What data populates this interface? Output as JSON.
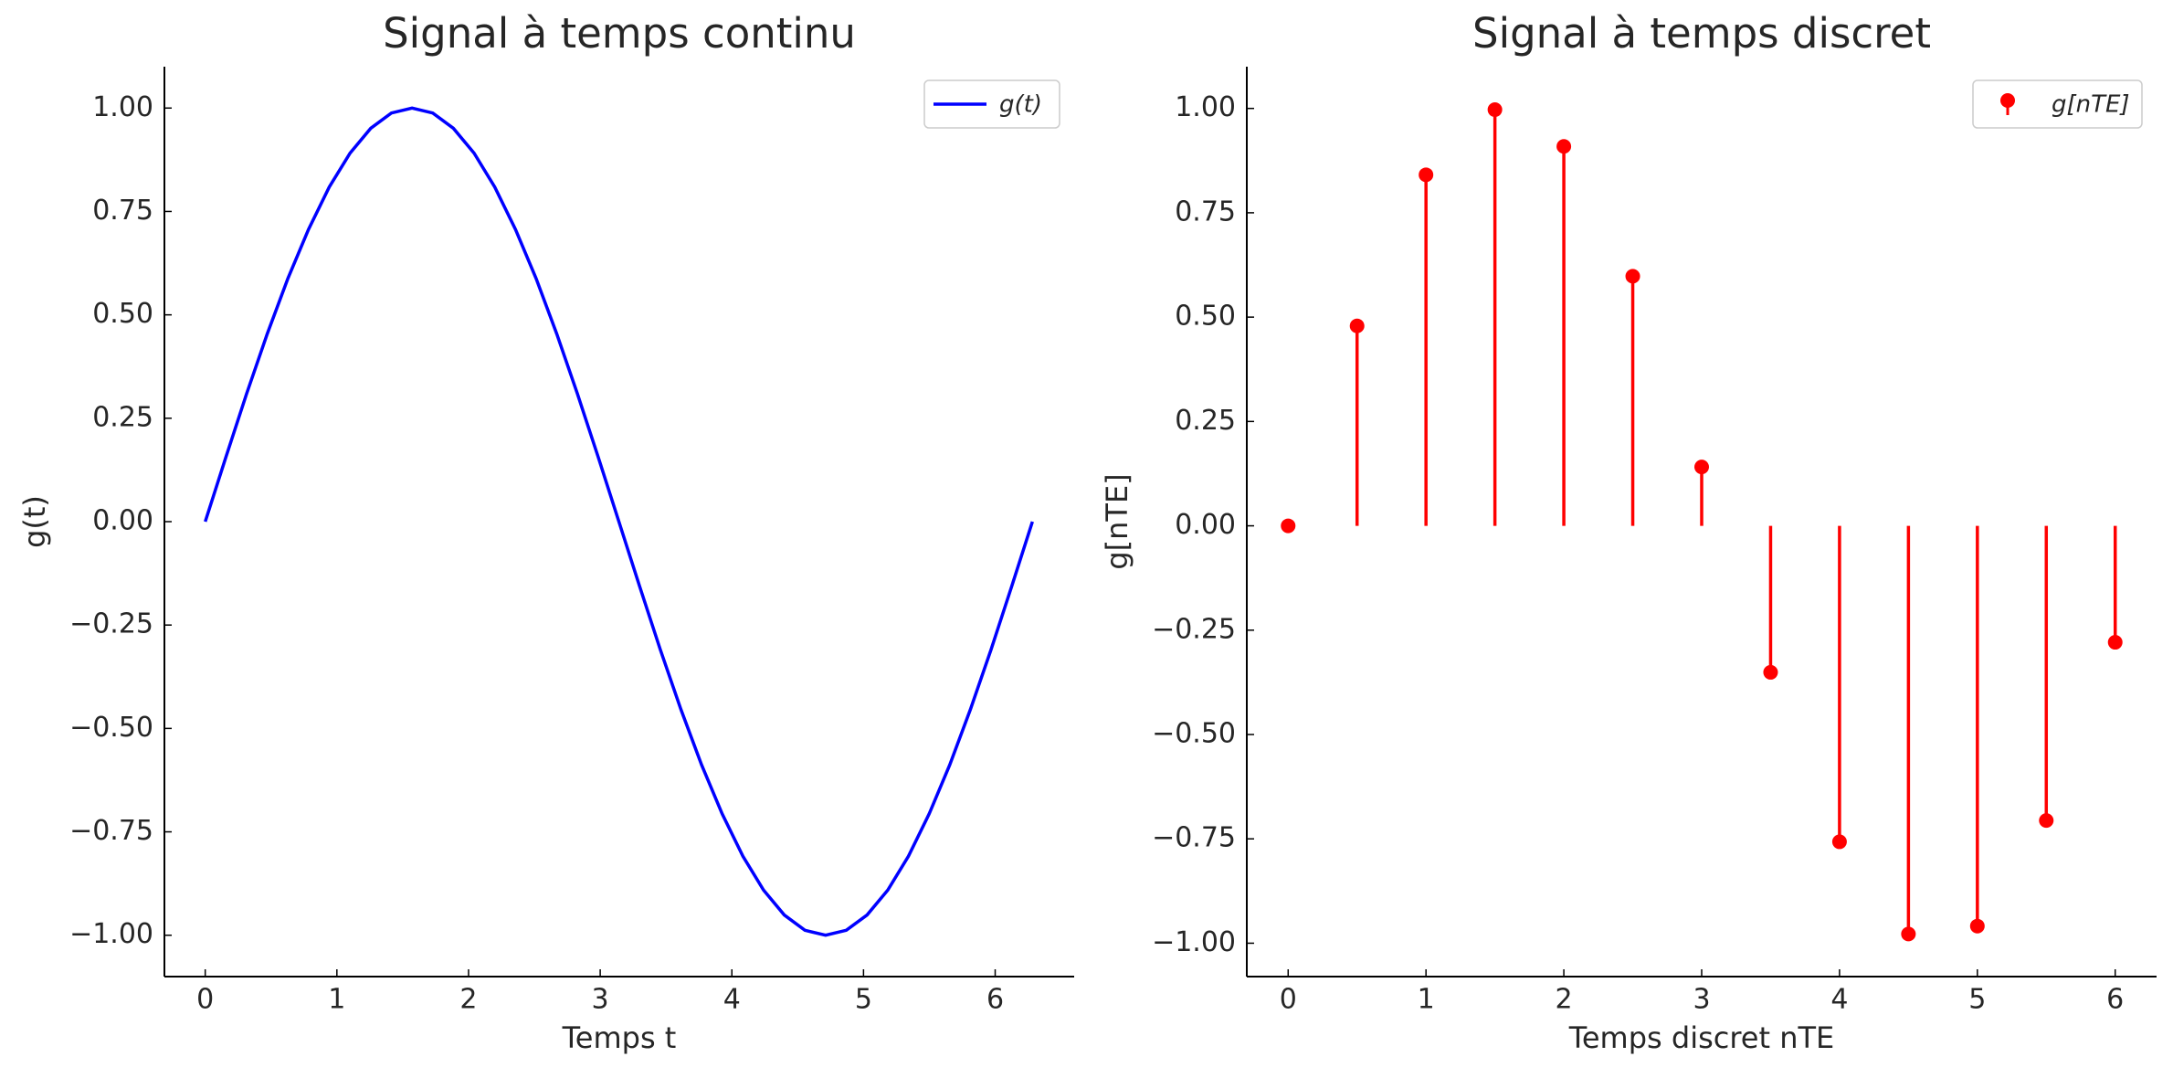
{
  "chart_data": [
    {
      "type": "line",
      "title": "Signal à temps continu",
      "x_label": "Temps t",
      "y_label": "g(t)",
      "x": [
        0,
        0.157,
        0.314,
        0.471,
        0.628,
        0.785,
        0.942,
        1.1,
        1.257,
        1.414,
        1.571,
        1.728,
        1.885,
        2.042,
        2.199,
        2.356,
        2.513,
        2.67,
        2.827,
        2.985,
        3.142,
        3.299,
        3.456,
        3.613,
        3.77,
        3.927,
        4.084,
        4.241,
        4.398,
        4.555,
        4.712,
        4.869,
        5.027,
        5.184,
        5.341,
        5.498,
        5.655,
        5.812,
        5.969,
        6.126,
        6.283
      ],
      "series": [
        {
          "name": "g(t)",
          "color": "#0000ff",
          "values": [
            0,
            0.156,
            0.309,
            0.454,
            0.588,
            0.707,
            0.809,
            0.891,
            0.951,
            0.988,
            1,
            0.988,
            0.951,
            0.891,
            0.809,
            0.707,
            0.588,
            0.454,
            0.309,
            0.156,
            0,
            -0.156,
            -0.309,
            -0.454,
            -0.588,
            -0.707,
            -0.809,
            -0.891,
            -0.951,
            -0.988,
            -1,
            -0.988,
            -0.951,
            -0.891,
            -0.809,
            -0.707,
            -0.588,
            -0.454,
            -0.309,
            -0.156,
            0
          ]
        }
      ],
      "xlim": [
        -0.31,
        6.6
      ],
      "ylim": [
        -1.1,
        1.1
      ],
      "xticks": [
        0,
        1,
        2,
        3,
        4,
        5,
        6
      ],
      "yticks": [
        {
          "value": -1,
          "label": "−1.00"
        },
        {
          "value": -0.75,
          "label": "−0.75"
        },
        {
          "value": -0.5,
          "label": "−0.50"
        },
        {
          "value": -0.25,
          "label": "−0.25"
        },
        {
          "value": 0,
          "label": "0.00"
        },
        {
          "value": 0.25,
          "label": "0.25"
        },
        {
          "value": 0.5,
          "label": "0.50"
        },
        {
          "value": 0.75,
          "label": "0.75"
        },
        {
          "value": 1,
          "label": "1.00"
        }
      ],
      "legend": "upper right"
    },
    {
      "type": "stem",
      "title": "Signal à temps discret",
      "x_label": "Temps discret nTE",
      "y_label": "g[nTE]",
      "x": [
        0,
        0.5,
        1,
        1.5,
        2,
        2.5,
        3,
        3.5,
        4,
        4.5,
        5,
        5.5,
        6
      ],
      "series": [
        {
          "name": "g[nTE]",
          "color": "#ff0000",
          "values": [
            0,
            0.479,
            0.841,
            0.997,
            0.909,
            0.598,
            0.141,
            -0.351,
            -0.757,
            -0.978,
            -0.959,
            -0.706,
            -0.279
          ]
        }
      ],
      "xlim": [
        -0.3,
        6.3
      ],
      "ylim": [
        -1.08,
        1.1
      ],
      "xticks": [
        0,
        1,
        2,
        3,
        4,
        5,
        6
      ],
      "yticks": [
        {
          "value": -1,
          "label": "−1.00"
        },
        {
          "value": -0.75,
          "label": "−0.75"
        },
        {
          "value": -0.5,
          "label": "−0.50"
        },
        {
          "value": -0.25,
          "label": "−0.25"
        },
        {
          "value": 0,
          "label": "0.00"
        },
        {
          "value": 0.25,
          "label": "0.25"
        },
        {
          "value": 0.5,
          "label": "0.50"
        },
        {
          "value": 0.75,
          "label": "0.75"
        },
        {
          "value": 1,
          "label": "1.00"
        }
      ],
      "legend": "upper right"
    }
  ]
}
